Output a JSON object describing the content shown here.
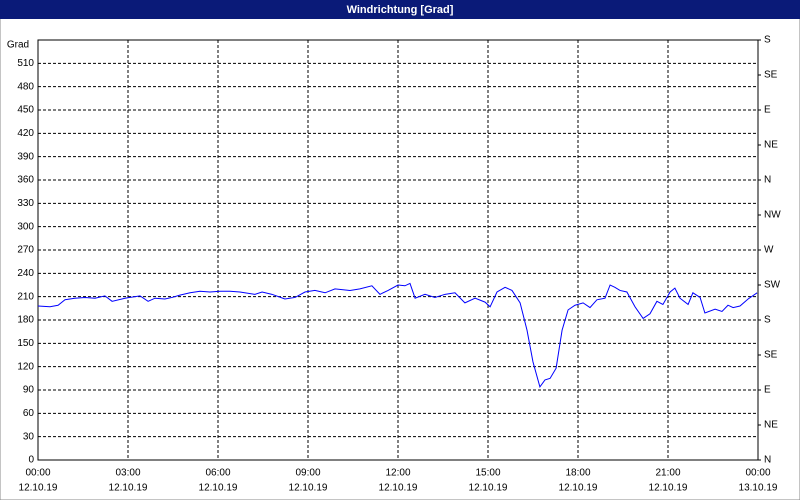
{
  "chart_data": {
    "type": "line",
    "title": "Windrichtung [Grad]",
    "ylabel": "Grad",
    "x": [
      0,
      0.4,
      0.67,
      0.9,
      1.23,
      1.57,
      1.9,
      2.23,
      2.47,
      2.9,
      3.4,
      3.67,
      3.9,
      4.23,
      4.47,
      4.73,
      5.07,
      5.4,
      5.73,
      6.07,
      6.4,
      6.73,
      7.23,
      7.47,
      7.8,
      8.23,
      8.57,
      8.9,
      9.23,
      9.57,
      9.9,
      10.4,
      10.73,
      11.13,
      11.4,
      11.67,
      12,
      12.23,
      12.4,
      12.57,
      12.9,
      13.23,
      13.57,
      13.9,
      14.23,
      14.57,
      14.9,
      15.07,
      15.3,
      15.57,
      15.8,
      16.07,
      16.3,
      16.5,
      16.73,
      16.9,
      17.07,
      17.27,
      17.47,
      17.67,
      17.9,
      18.17,
      18.4,
      18.63,
      18.9,
      19.07,
      19.23,
      19.4,
      19.63,
      19.9,
      20.17,
      20.4,
      20.63,
      20.83,
      21.07,
      21.23,
      21.4,
      21.67,
      21.83,
      22.07,
      22.23,
      22.57,
      22.8,
      23,
      23.17,
      23.4,
      23.67,
      23.97
    ],
    "values": [
      198,
      197,
      199,
      206,
      208,
      209,
      208,
      211,
      204,
      208,
      211,
      204,
      208,
      207,
      209,
      212,
      215,
      217,
      216,
      217,
      217,
      216,
      213,
      216,
      213,
      207,
      209,
      216,
      218,
      215,
      220,
      218,
      220,
      224,
      213,
      218,
      225,
      224,
      227,
      208,
      213,
      209,
      213,
      215,
      202,
      208,
      203,
      197,
      216,
      222,
      218,
      202,
      167,
      126,
      94,
      103,
      105,
      118,
      167,
      193,
      199,
      202,
      196,
      206,
      208,
      225,
      222,
      218,
      216,
      197,
      182,
      188,
      204,
      200,
      216,
      221,
      208,
      200,
      215,
      209,
      189,
      194,
      191,
      199,
      196,
      198,
      207,
      215
    ],
    "color": "#0000ff",
    "xlim": [
      0,
      24
    ],
    "xticks": [
      {
        "value": 0,
        "label": "00:00",
        "sublabel": "12.10.19"
      },
      {
        "value": 3,
        "label": "03:00",
        "sublabel": "12.10.19"
      },
      {
        "value": 6,
        "label": "06:00",
        "sublabel": "12.10.19"
      },
      {
        "value": 9,
        "label": "09:00",
        "sublabel": "12.10.19"
      },
      {
        "value": 12,
        "label": "12:00",
        "sublabel": "12.10.19"
      },
      {
        "value": 15,
        "label": "15:00",
        "sublabel": "12.10.19"
      },
      {
        "value": 18,
        "label": "18:00",
        "sublabel": "12.10.19"
      },
      {
        "value": 21,
        "label": "21:00",
        "sublabel": "12.10.19"
      },
      {
        "value": 24,
        "label": "00:00",
        "sublabel": "13.10.19"
      }
    ],
    "ylim": [
      0,
      540
    ],
    "yticks": [
      0,
      30,
      60,
      90,
      120,
      150,
      180,
      210,
      240,
      270,
      300,
      330,
      360,
      390,
      420,
      450,
      480,
      510
    ],
    "y2lim": [
      0,
      540
    ],
    "y2ticks": [
      {
        "value": 0,
        "label": "N"
      },
      {
        "value": 45,
        "label": "NE"
      },
      {
        "value": 90,
        "label": "E"
      },
      {
        "value": 135,
        "label": "SE"
      },
      {
        "value": 180,
        "label": "S"
      },
      {
        "value": 225,
        "label": "SW"
      },
      {
        "value": 270,
        "label": "W"
      },
      {
        "value": 315,
        "label": "NW"
      },
      {
        "value": 360,
        "label": "N"
      },
      {
        "value": 405,
        "label": "NE"
      },
      {
        "value": 450,
        "label": "E"
      },
      {
        "value": 495,
        "label": "SE"
      },
      {
        "value": 540,
        "label": "S"
      }
    ],
    "grid": true
  }
}
